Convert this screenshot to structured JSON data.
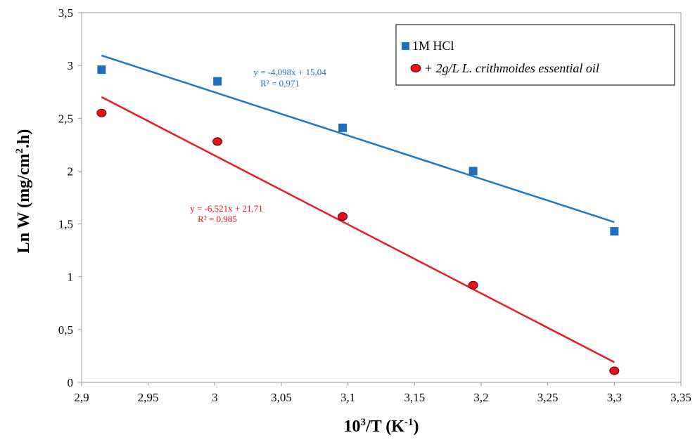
{
  "chart_data": {
    "type": "scatter",
    "xlabel": {
      "base": "10",
      "sup1": "3",
      "mid": "/T (K",
      "sup2": "-1",
      "end": ")"
    },
    "ylabel": {
      "base": "Ln W (mg/cm",
      "sup": "2",
      "end": ".h)"
    },
    "xlim": [
      2.9,
      3.35
    ],
    "ylim": [
      0,
      3.5
    ],
    "xticks": [
      2.9,
      2.95,
      3.0,
      3.05,
      3.1,
      3.15,
      3.2,
      3.25,
      3.3,
      3.35
    ],
    "xtick_labels": [
      "2,9",
      "2,95",
      "3",
      "3,05",
      "3,1",
      "3,15",
      "3,2",
      "3,25",
      "3,3",
      "3,35"
    ],
    "yticks": [
      0,
      0.5,
      1,
      1.5,
      2,
      2.5,
      3,
      3.5
    ],
    "ytick_labels": [
      "0",
      "0,5",
      "1",
      "1,5",
      "2",
      "2,5",
      "3",
      "3,5"
    ],
    "grid": false,
    "legend_position": "top-right",
    "series": [
      {
        "name": "1M HCl",
        "marker": "square",
        "color": "#1f6fc0",
        "line_color": "#1f78c4",
        "x": [
          2.915,
          3.002,
          3.096,
          3.194,
          3.3
        ],
        "y": [
          2.96,
          2.85,
          2.41,
          2.0,
          1.43
        ],
        "fit": {
          "slope": -4.098,
          "intercept": 15.04,
          "x_range": [
            2.915,
            3.3
          ]
        },
        "equation": "y = -4,098x + 15,04",
        "r2": "R² = 0,971"
      },
      {
        "name": "+ 2g/L L. crithmoides essential oil",
        "marker": "circle",
        "color": "#e8101c",
        "line_color": "#e51d25",
        "x": [
          2.915,
          3.002,
          3.096,
          3.194,
          3.3
        ],
        "y": [
          2.55,
          2.28,
          1.57,
          0.92,
          0.11
        ],
        "fit": {
          "slope": -6.521,
          "intercept": 21.71,
          "x_range": [
            2.915,
            3.3
          ]
        },
        "equation": "y = -6,521x + 21,71",
        "r2": "R² = 0,985"
      }
    ]
  }
}
